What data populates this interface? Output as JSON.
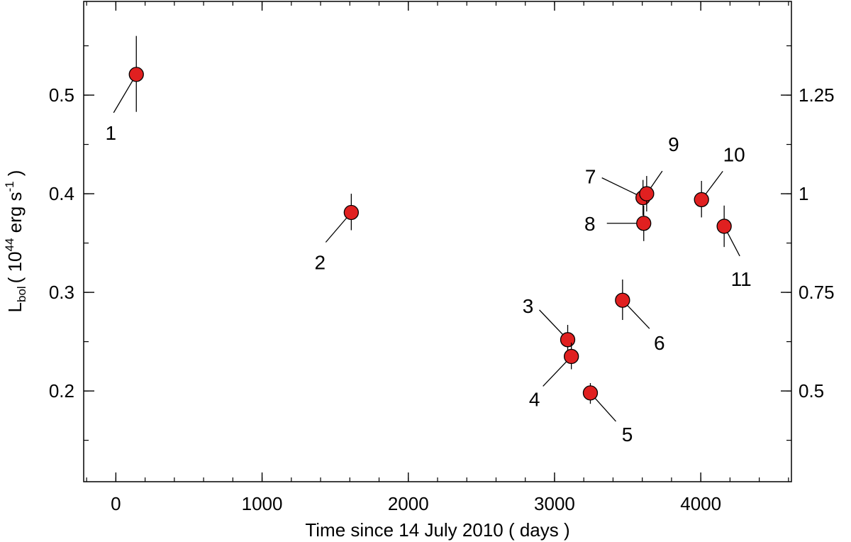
{
  "chart_data": {
    "type": "scatter",
    "xlabel": "Time since 14 July 2010 ( days )",
    "ylabel": {
      "symbol": "L",
      "subscript": "bol",
      "open": "( 10",
      "exponent": "44",
      "unit": " erg s",
      "unit_exponent": "-1",
      "close": " )"
    },
    "xlim": [
      -220,
      4620
    ],
    "ylim": [
      0.108,
      0.595
    ],
    "xticks": [
      0,
      1000,
      2000,
      3000,
      4000
    ],
    "xtick_labels": [
      "0",
      "1000",
      "2000",
      "3000",
      "4000"
    ],
    "xminor_step": 200,
    "yticks": [
      0.2,
      0.3,
      0.4,
      0.5
    ],
    "ytick_labels": [
      "0.2",
      "0.3",
      "0.4",
      "0.5"
    ],
    "yminor_step": 0.05,
    "y2_ticks": [
      0.2,
      0.3,
      0.4,
      0.5
    ],
    "y2_tick_labels": [
      "0.5",
      "0.75",
      "1",
      "1.25"
    ],
    "grid": false,
    "marker_color": "#e02020",
    "points": [
      {
        "label": "1",
        "x": 140,
        "y": 0.521,
        "ylow": 0.483,
        "yhigh": 0.56
      },
      {
        "label": "2",
        "x": 1610,
        "y": 0.381,
        "ylow": 0.363,
        "yhigh": 0.4
      },
      {
        "label": "3",
        "x": 3090,
        "y": 0.252,
        "ylow": 0.238,
        "yhigh": 0.267
      },
      {
        "label": "4",
        "x": 3115,
        "y": 0.235,
        "ylow": 0.222,
        "yhigh": 0.249
      },
      {
        "label": "5",
        "x": 3245,
        "y": 0.198,
        "ylow": 0.187,
        "yhigh": 0.208
      },
      {
        "label": "6",
        "x": 3465,
        "y": 0.292,
        "ylow": 0.272,
        "yhigh": 0.313
      },
      {
        "label": "7",
        "x": 3605,
        "y": 0.396,
        "ylow": 0.378,
        "yhigh": 0.414
      },
      {
        "label": "8",
        "x": 3610,
        "y": 0.37,
        "ylow": 0.352,
        "yhigh": 0.388
      },
      {
        "label": "9",
        "x": 3630,
        "y": 0.4,
        "ylow": 0.382,
        "yhigh": 0.418
      },
      {
        "label": "10",
        "x": 4005,
        "y": 0.394,
        "ylow": 0.376,
        "yhigh": 0.413
      },
      {
        "label": "11",
        "x": 4160,
        "y": 0.367,
        "ylow": 0.346,
        "yhigh": 0.388
      }
    ]
  }
}
